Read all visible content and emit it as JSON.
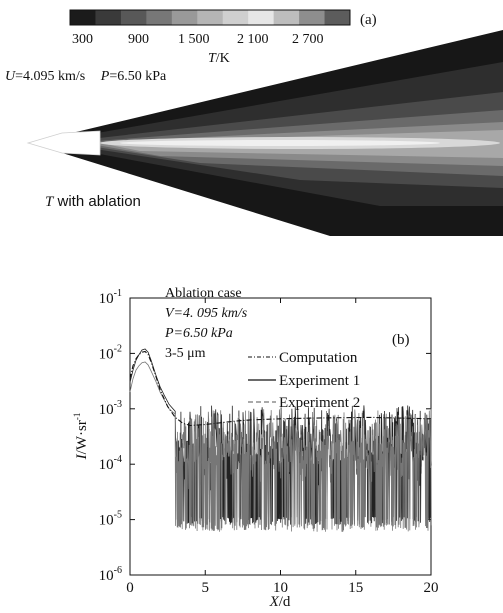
{
  "panel_a": {
    "label": "(a)",
    "colorbar": {
      "tick_labels": [
        "300",
        "900",
        "1 500",
        "2 100",
        "2 700"
      ],
      "label_T": "T",
      "label_unit": "/K",
      "colors": [
        "#1b1b1b",
        "#3a3a3a",
        "#585858",
        "#777777",
        "#999999",
        "#b5b5b5",
        "#cfcfcf",
        "#e6e6e6",
        "#bdbdbd",
        "#8e8e8e",
        "#5c5c5c"
      ]
    },
    "condition_U_symbol": "U",
    "condition_U_value": "=4.095 km/s",
    "condition_P_symbol": "P",
    "condition_P_value": "=6.50 kPa",
    "caption_T": "T",
    "caption_rest": " with ablation"
  },
  "chart_data": {
    "type": "line",
    "panel_label": "(b)",
    "annotation": [
      "Ablation case",
      "V=4. 095 km/s",
      "P=6.50 kPa",
      "3-5 μm"
    ],
    "xlabel_symbol": "X",
    "xlabel_unit": "/d",
    "ylabel_symbol": "I",
    "ylabel_unit": "/W·sr",
    "ylabel_exp": "-1",
    "xlim": [
      0,
      20
    ],
    "ylim": [
      1e-06,
      0.1
    ],
    "yscale": "log",
    "x_ticks": [
      0,
      5,
      10,
      15,
      20
    ],
    "y_ticks": [
      1e-06,
      1e-05,
      0.0001,
      0.001,
      0.01,
      0.1
    ],
    "y_tick_labels": [
      {
        "base": "10",
        "exp": "-6"
      },
      {
        "base": "10",
        "exp": "-5"
      },
      {
        "base": "10",
        "exp": "-4"
      },
      {
        "base": "10",
        "exp": "-3"
      },
      {
        "base": "10",
        "exp": "-2"
      },
      {
        "base": "10",
        "exp": "-1"
      }
    ],
    "legend_position": "right",
    "series": [
      {
        "name": "Computation",
        "style": "dash-dot",
        "x": [
          0,
          0.2,
          0.4,
          0.6,
          0.8,
          1.0,
          1.2,
          1.4,
          1.7,
          2.0,
          2.5,
          3.0,
          3.5,
          4.0,
          5.0,
          6.0,
          7.0,
          8.0,
          10.0,
          12.0,
          14.0,
          16.0,
          18.0,
          20.0
        ],
        "y": [
          0.0035,
          0.006,
          0.008,
          0.0095,
          0.0105,
          0.0108,
          0.0095,
          0.007,
          0.004,
          0.0022,
          0.0011,
          0.0007,
          0.00055,
          0.0005,
          0.00052,
          0.00056,
          0.0006,
          0.00063,
          0.00066,
          0.00068,
          0.00069,
          0.0007,
          0.00068,
          0.00066
        ]
      },
      {
        "name": "Experiment 1",
        "style": "solid",
        "x": [
          0,
          0.2,
          0.4,
          0.6,
          0.8,
          1.0,
          1.2,
          1.4,
          1.7,
          2.0,
          2.3,
          2.6,
          3.0
        ],
        "y": [
          0.003,
          0.005,
          0.0075,
          0.0095,
          0.0115,
          0.012,
          0.0105,
          0.0075,
          0.0042,
          0.0025,
          0.0017,
          0.0012,
          0.0009
        ],
        "noise_range": [
          3.0,
          20.0
        ],
        "noise_level": [
          0.0001,
          0.0012
        ],
        "noise_floor": 8e-06
      },
      {
        "name": "Experiment 2",
        "style": "dashed",
        "x": [
          0,
          0.2,
          0.4,
          0.6,
          0.8,
          1.0,
          1.2,
          1.4,
          1.7,
          2.0,
          2.3,
          2.6,
          3.0
        ],
        "y": [
          0.002,
          0.0035,
          0.005,
          0.006,
          0.0068,
          0.007,
          0.0062,
          0.0048,
          0.0032,
          0.002,
          0.0014,
          0.001,
          0.0008
        ],
        "noise_range": [
          3.0,
          20.0
        ],
        "noise_level": [
          0.0001,
          0.001
        ],
        "noise_floor": 6e-06
      }
    ]
  }
}
